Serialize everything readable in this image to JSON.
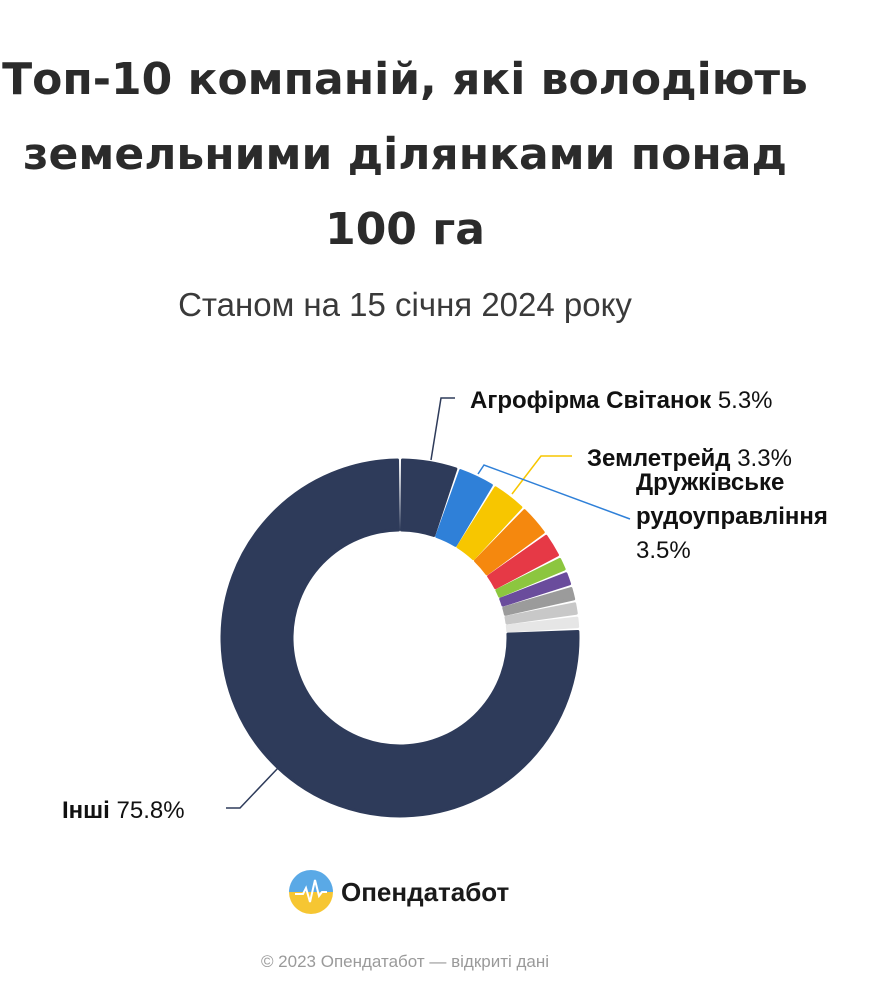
{
  "header": {
    "title_lines": [
      "Топ-10 компаній, які володіють",
      "земельними ділянками понад",
      "100 га"
    ],
    "subtitle": "Станом на 15 січня 2024 року"
  },
  "chart_data": {
    "type": "pie",
    "donut": true,
    "title": "Топ-10 компаній, які володіють земельними ділянками понад 100 га",
    "subtitle": "Станом на 15 січня 2024 року",
    "slices": [
      {
        "name": "Агрофірма Світанок",
        "value": 5.3,
        "value_label": "5.3%",
        "color": "#2e3b5a"
      },
      {
        "name": "Дружківське рудоуправління",
        "value": 3.5,
        "value_label": "3.5%",
        "color": "#2f80d8"
      },
      {
        "name": "Землетрейд",
        "value": 3.3,
        "value_label": "3.3%",
        "color": "#f7c600"
      },
      {
        "name": "",
        "value": 3.0,
        "color": "#f5880e"
      },
      {
        "name": "",
        "value": 2.4,
        "color": "#e63946"
      },
      {
        "name": "",
        "value": 1.4,
        "color": "#8cc63f"
      },
      {
        "name": "",
        "value": 1.4,
        "color": "#6a4c9c"
      },
      {
        "name": "",
        "value": 1.4,
        "color": "#9b9b9b"
      },
      {
        "name": "",
        "value": 1.3,
        "color": "#c8c8c8"
      },
      {
        "name": "",
        "value": 1.2,
        "color": "#e6e6e6"
      },
      {
        "name": "Інші",
        "value": 75.8,
        "value_label": "75.8%",
        "color": "#2e3b5a"
      }
    ],
    "labels": [
      {
        "name": "Агрофірма Світанок",
        "value_label": "5.3%"
      },
      {
        "name": "Землетрейд",
        "value_label": "3.3%"
      },
      {
        "name": "Дружківське рудоуправління",
        "name_lines": [
          "Дружківське",
          "рудоуправління"
        ],
        "value_label": "3.5%"
      },
      {
        "name": "Інші",
        "value_label": "75.8%"
      }
    ]
  },
  "brand": {
    "logo_icon": "opendatabot-logo-icon",
    "name": "Опендатабот",
    "colors": {
      "blue": "#5aa9e6",
      "yellow": "#f6c632"
    }
  },
  "footer": {
    "text": "© 2023 Опендатабот — відкриті дані"
  }
}
